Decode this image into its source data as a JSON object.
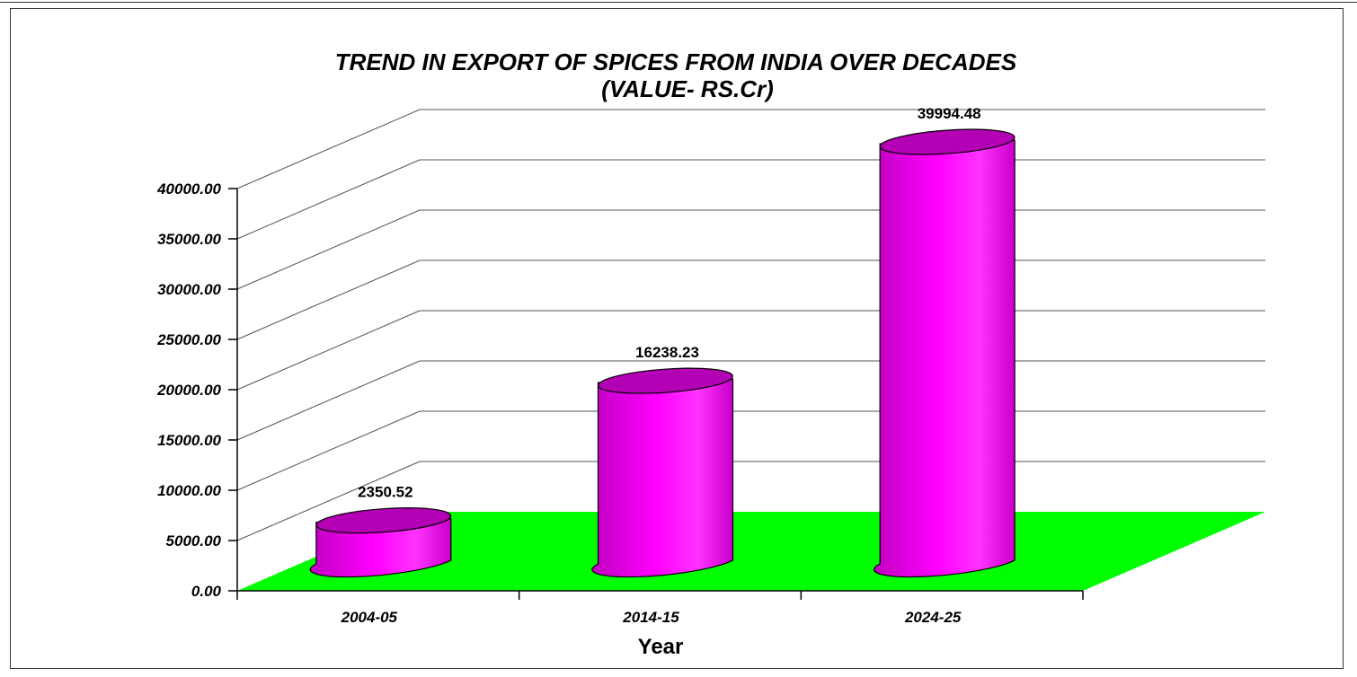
{
  "chart_data": {
    "type": "bar",
    "style": "3d-cylinder",
    "title": "TREND IN EXPORT OF SPICES FROM INDIA OVER DECADES",
    "subtitle": "(VALUE- RS.Cr)",
    "xlabel": "Year",
    "ylabel": "",
    "categories": [
      "2004-05",
      "2014-15",
      "2024-25"
    ],
    "values": [
      2350.52,
      16238.23,
      39994.48
    ],
    "data_labels": [
      "2350.52",
      "16238.23",
      "39994.48"
    ],
    "ylim": [
      0,
      40000
    ],
    "y_ticks": [
      "0.00",
      "5000.00",
      "10000.00",
      "15000.00",
      "20000.00",
      "25000.00",
      "30000.00",
      "35000.00",
      "40000.00"
    ],
    "grid": true,
    "legend": "none",
    "colors": {
      "bar": "#ff00ff",
      "bar_top": "#b400b4",
      "floor": "#00ff00",
      "grid": "#555555"
    }
  }
}
